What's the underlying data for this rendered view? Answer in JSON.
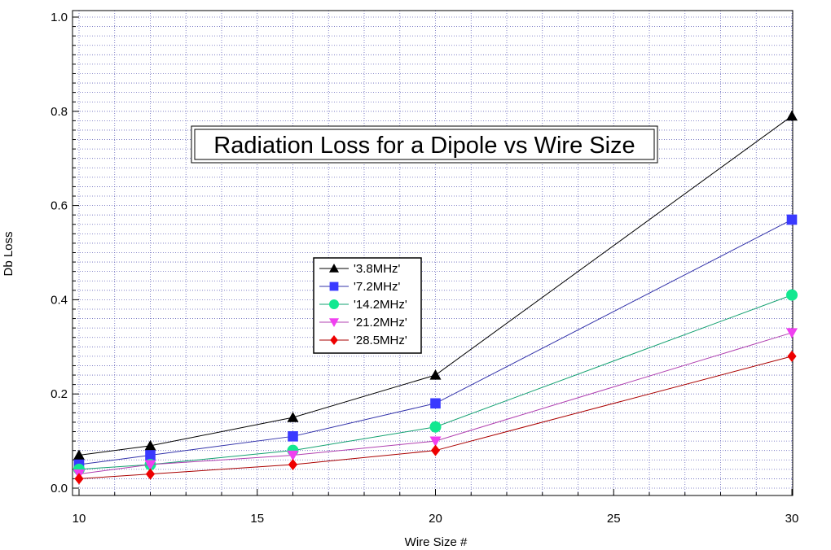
{
  "chart_data": {
    "type": "line",
    "title": "Radiation Loss for a Dipole vs Wire Size",
    "xlabel": "Wire Size #",
    "ylabel": "Db Loss",
    "xlim": [
      10,
      30
    ],
    "ylim": [
      0,
      1.0
    ],
    "x_ticks": [
      "10",
      "15",
      "20",
      "25",
      "30"
    ],
    "y_ticks": [
      "0.0",
      "0.2",
      "0.4",
      "0.6",
      "0.8",
      "1.0"
    ],
    "grid": true,
    "legend_position": "center",
    "x": [
      10,
      12,
      16,
      20,
      30
    ],
    "series": [
      {
        "name": "'3.8MHz'",
        "marker": "triangle-up",
        "marker_color": "#000000",
        "line_color": "#000000",
        "values": [
          0.07,
          0.09,
          0.15,
          0.24,
          0.79
        ]
      },
      {
        "name": "'7.2MHz'",
        "marker": "square",
        "marker_color": "#3a3aff",
        "line_color": "#3333aa",
        "values": [
          0.05,
          0.07,
          0.11,
          0.18,
          0.57
        ]
      },
      {
        "name": "'14.2MHz'",
        "marker": "circle",
        "marker_color": "#12e890",
        "line_color": "#12a070",
        "values": [
          0.04,
          0.05,
          0.08,
          0.13,
          0.41
        ]
      },
      {
        "name": "'21.2MHz'",
        "marker": "triangle-down",
        "marker_color": "#f040f0",
        "line_color": "#b040b0",
        "values": [
          0.03,
          0.05,
          0.07,
          0.1,
          0.33
        ]
      },
      {
        "name": "'28.5MHz'",
        "marker": "diamond",
        "marker_color": "#ee0000",
        "line_color": "#aa0000",
        "values": [
          0.02,
          0.03,
          0.05,
          0.08,
          0.28
        ]
      }
    ]
  }
}
